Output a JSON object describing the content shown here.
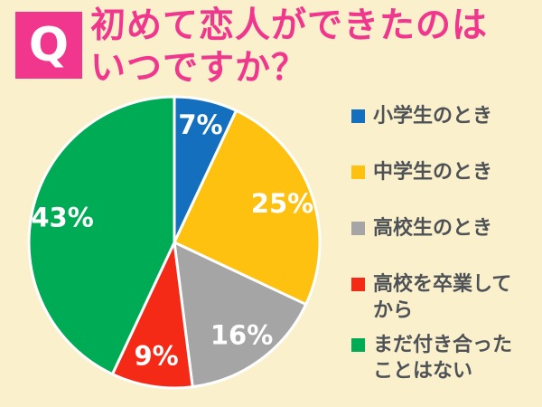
{
  "background_color": "#FAF0CC",
  "accent_color": "#F1378D",
  "header": {
    "badge_letter": "Q",
    "badge_color": "#F1378D",
    "badge_text_color": "#FFFFFF",
    "title_line1": "初めて恋人ができたのは",
    "title_line2": "いつですか？",
    "title_color": "#F1378D"
  },
  "chart_data": {
    "type": "pie",
    "title": "初めて恋人ができたのはいつですか？",
    "start_angle_deg": 0,
    "direction": "clockwise",
    "unit": "%",
    "slices": [
      {
        "label": "小学生のとき",
        "value": 7,
        "display": "7%",
        "color": "#1470BE"
      },
      {
        "label": "中学生のとき",
        "value": 25,
        "display": "25%",
        "color": "#FEC110"
      },
      {
        "label": "高校生のとき",
        "value": 16,
        "display": "16%",
        "color": "#A5A5A5"
      },
      {
        "label": "高校を卒業してから",
        "value": 9,
        "display": "9%",
        "color": "#F42A17"
      },
      {
        "label": "まだ付き合ったことはない",
        "value": 43,
        "display": "43%",
        "color": "#00AB55"
      }
    ],
    "slice_label_color": "#FFFFFF",
    "slice_separator_color": "#FFFFFF",
    "legend_position": "right"
  },
  "legend": {
    "text_color": "#4E5256",
    "items": [
      {
        "lines": [
          "小学生のとき"
        ],
        "color": "#1470BE"
      },
      {
        "lines": [
          "中学生のとき"
        ],
        "color": "#FEC110"
      },
      {
        "lines": [
          "高校生のとき"
        ],
        "color": "#A5A5A5"
      },
      {
        "lines": [
          "高校を卒業して",
          "から"
        ],
        "color": "#F42A17"
      },
      {
        "lines": [
          "まだ付き合った",
          "ことはない"
        ],
        "color": "#00AB55"
      }
    ]
  }
}
